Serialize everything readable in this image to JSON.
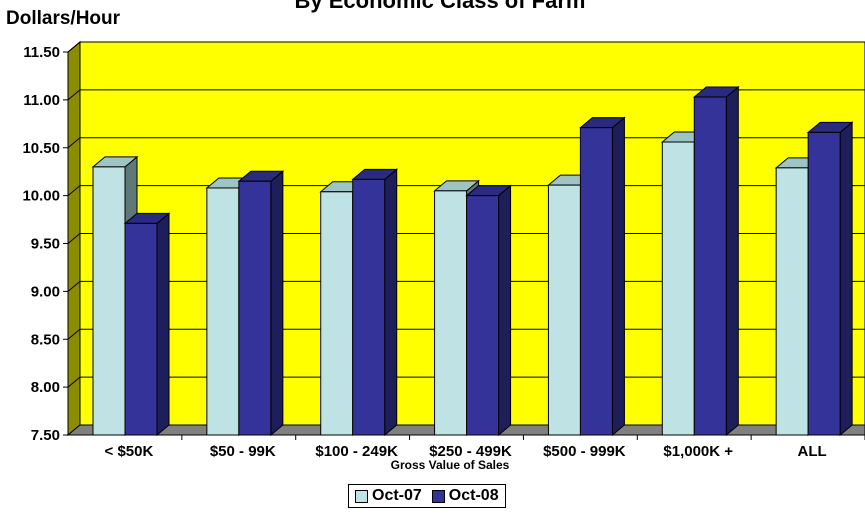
{
  "chart_data": {
    "type": "bar",
    "title": "By Economic Class of Farm",
    "ylabel": "Dollars/Hour",
    "xlabel": "Gross Value of Sales",
    "ylim": [
      7.5,
      11.5
    ],
    "yticks": [
      "7.50",
      "8.00",
      "8.50",
      "9.00",
      "9.50",
      "10.00",
      "10.50",
      "11.00",
      "11.50"
    ],
    "categories": [
      "< $50K",
      "$50 - 99K",
      "$100 - 249K",
      "$250 - 499K",
      "$500 - 999K",
      "$1,000K +",
      "ALL"
    ],
    "series": [
      {
        "name": "Oct-07",
        "color": "#BFE3E5",
        "values": [
          10.3,
          10.08,
          10.04,
          10.05,
          10.11,
          10.56,
          10.29
        ]
      },
      {
        "name": "Oct-08",
        "color": "#333399",
        "values": [
          9.71,
          10.15,
          10.17,
          10.0,
          10.71,
          11.03,
          10.66
        ]
      }
    ],
    "plot_background": "#FFFF00",
    "grid": true,
    "legend_position": "bottom"
  }
}
